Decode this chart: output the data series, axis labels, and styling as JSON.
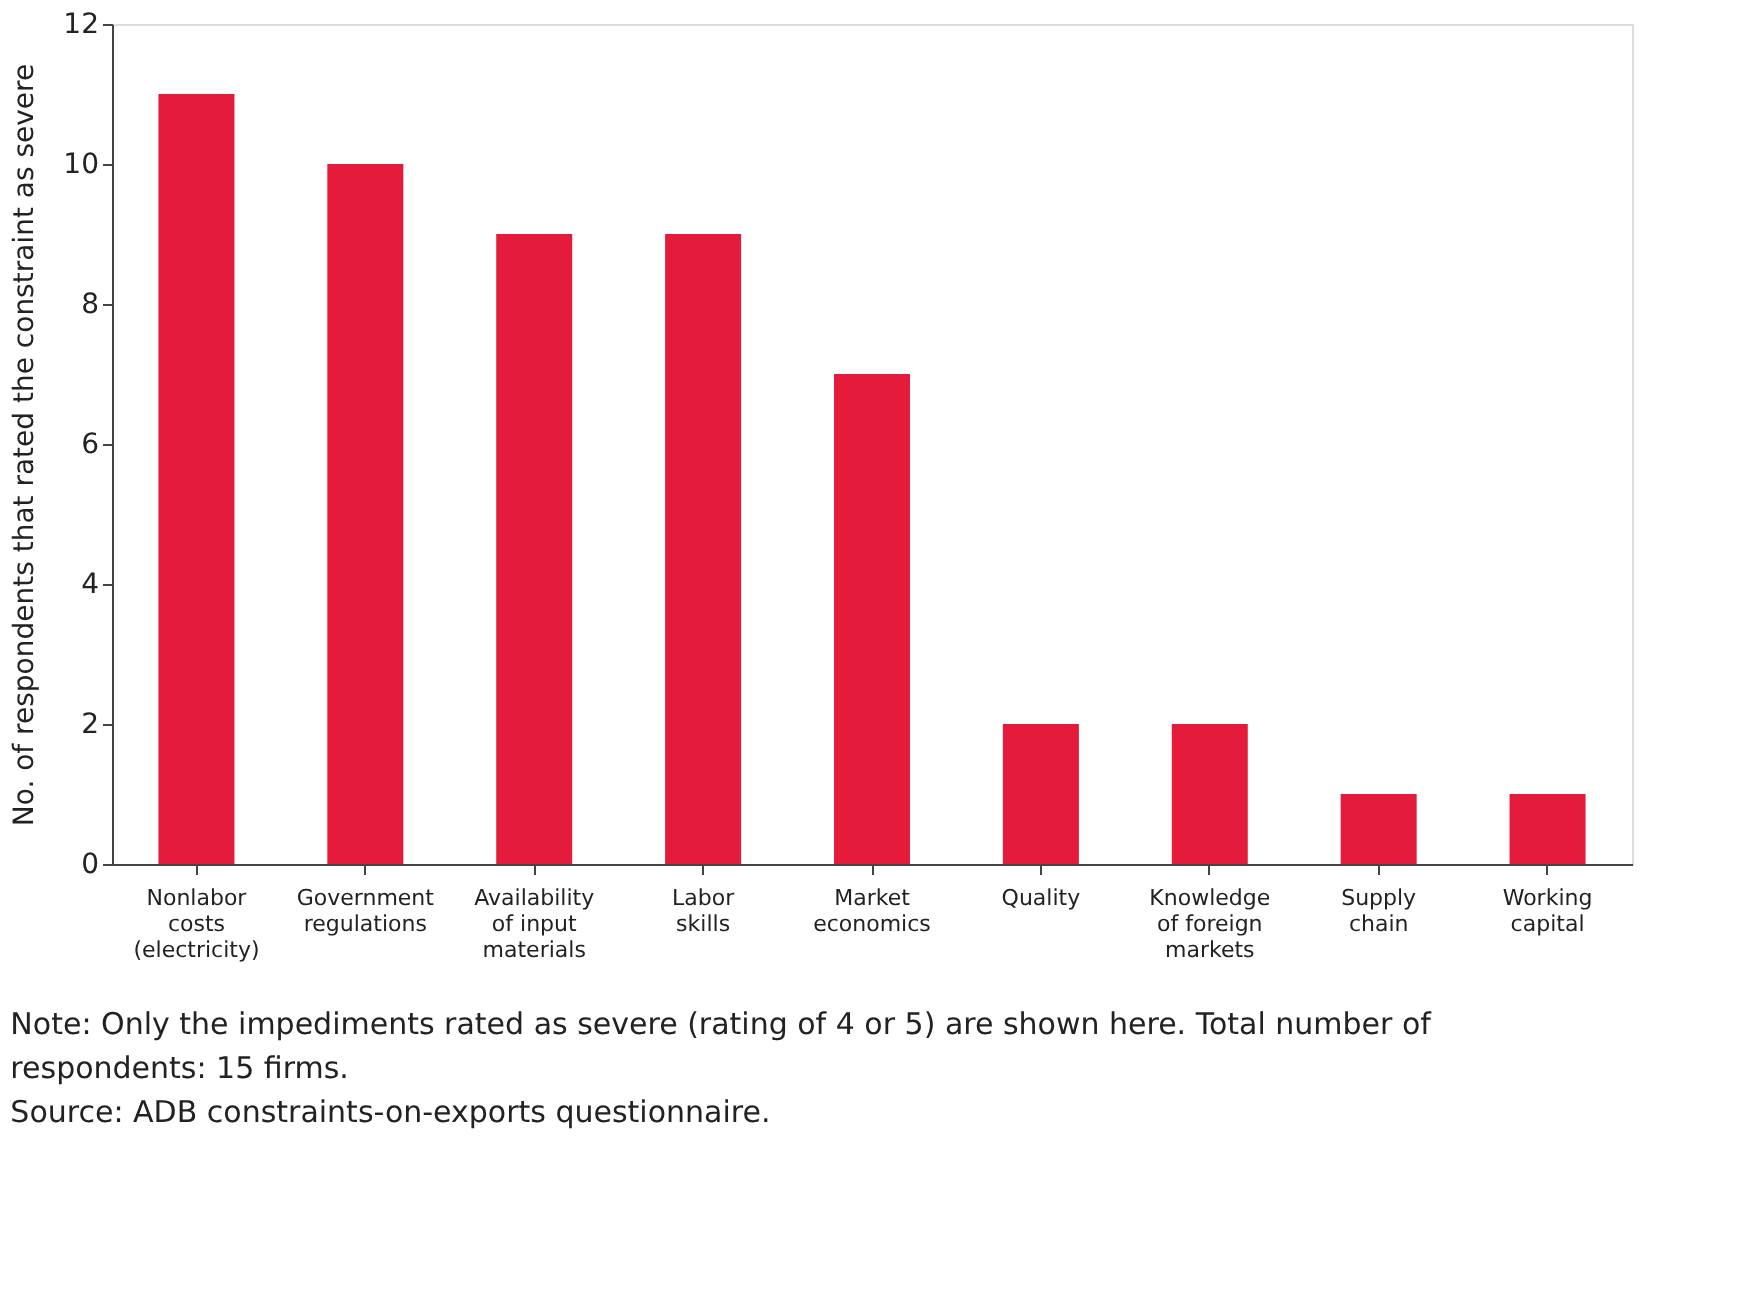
{
  "chart_data": {
    "type": "bar",
    "ylabel": "No. of respondents that rated the constraint as severe",
    "categories": [
      "Nonlabor costs (electricity)",
      "Government regulations",
      "Availability of input materials",
      "Labor skills",
      "Market economics",
      "Quality",
      "Knowledge of foreign markets",
      "Supply chain",
      "Working capital"
    ],
    "values": [
      11,
      10,
      9,
      9,
      7,
      2,
      2,
      1,
      1
    ],
    "color": "#e41b3a",
    "ylim": [
      0,
      12
    ],
    "yticks": [
      0,
      2,
      4,
      6,
      8,
      10,
      12
    ],
    "grid": false,
    "annotations": [
      "Note: Only the impediments rated as severe (rating of 4 or 5) are shown here. Total number of respondents: 15 firms.",
      "Source: ADB constraints-on-exports questionnaire."
    ]
  }
}
